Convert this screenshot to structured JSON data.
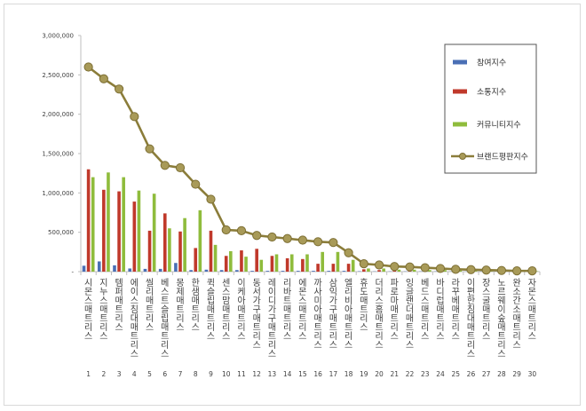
{
  "chart_data": {
    "type": "bar",
    "ylim": [
      0,
      3000000
    ],
    "yticks": [
      "-",
      "500,000",
      "1,000,000",
      "1,500,000",
      "2,000,000",
      "2,500,000",
      "3,000,000"
    ],
    "grid": false,
    "legend_position": "right",
    "ranks": [
      "1",
      "2",
      "3",
      "4",
      "5",
      "6",
      "7",
      "8",
      "9",
      "10",
      "11",
      "12",
      "13",
      "14",
      "15",
      "16",
      "17",
      "18",
      "19",
      "20",
      "21",
      "22",
      "23",
      "24",
      "25",
      "26",
      "27",
      "28",
      "29",
      "30"
    ],
    "categories": [
      "시몬스매트리스",
      "지누스매트리스",
      "템퍼매트리스",
      "에이스침대매트리스",
      "씰리매트리스",
      "베스트슬립매트리스",
      "몽제매트리스",
      "한샘매트리스",
      "퀵슬립매트리스",
      "센스맘매트리스",
      "이케아매트리스",
      "동서가구매트리스",
      "레이디가구매트리스",
      "리바트매트리스",
      "에몬스매트리스",
      "까사미아매트리스",
      "삼익가구매트리스",
      "엘리비아매트리스",
      "휴도매트리스",
      "더리스홈매트리스",
      "파로마매트리스",
      "잉글랜더매트리스",
      "베드스매트리스",
      "바디럽매트리스",
      "라꾸베매트리스",
      "이편한침대매트리스",
      "장스굴매트리스",
      "노르웨이숲매트리스",
      "완소간소매트리스",
      "자몬스매트리스"
    ],
    "series": [
      {
        "name": "참여지수",
        "color": "#4a6fb5",
        "values": [
          75000,
          130000,
          80000,
          40000,
          35000,
          35000,
          110000,
          20000,
          25000,
          20000,
          20000,
          10000,
          10000,
          10000,
          10000,
          10000,
          10000,
          10000,
          5000,
          3000,
          3000,
          3000,
          3000,
          3000,
          2000,
          2000,
          2000,
          2000,
          1000,
          1000
        ]
      },
      {
        "name": "소통지수",
        "color": "#c0392b",
        "values": [
          1300000,
          1040000,
          1020000,
          890000,
          520000,
          740000,
          510000,
          300000,
          520000,
          200000,
          270000,
          290000,
          200000,
          170000,
          160000,
          100000,
          100000,
          100000,
          30000,
          20000,
          20000,
          10000,
          10000,
          10000,
          5000,
          5000,
          5000,
          5000,
          3000,
          3000
        ]
      },
      {
        "name": "커뮤니티지수",
        "color": "#8fbc3c",
        "values": [
          1200000,
          1260000,
          1200000,
          1030000,
          990000,
          550000,
          680000,
          780000,
          340000,
          260000,
          190000,
          150000,
          220000,
          220000,
          220000,
          250000,
          250000,
          150000,
          40000,
          40000,
          25000,
          25000,
          20000,
          20000,
          15000,
          10000,
          10000,
          8000,
          5000,
          5000
        ]
      },
      {
        "name": "브랜드평판지수",
        "color": "#8b7d3a",
        "type": "line",
        "values": [
          2600000,
          2450000,
          2320000,
          1970000,
          1560000,
          1350000,
          1320000,
          1110000,
          920000,
          530000,
          520000,
          460000,
          440000,
          420000,
          400000,
          380000,
          370000,
          240000,
          100000,
          85000,
          65000,
          60000,
          50000,
          40000,
          30000,
          25000,
          20000,
          15000,
          10000,
          10000
        ]
      }
    ]
  }
}
